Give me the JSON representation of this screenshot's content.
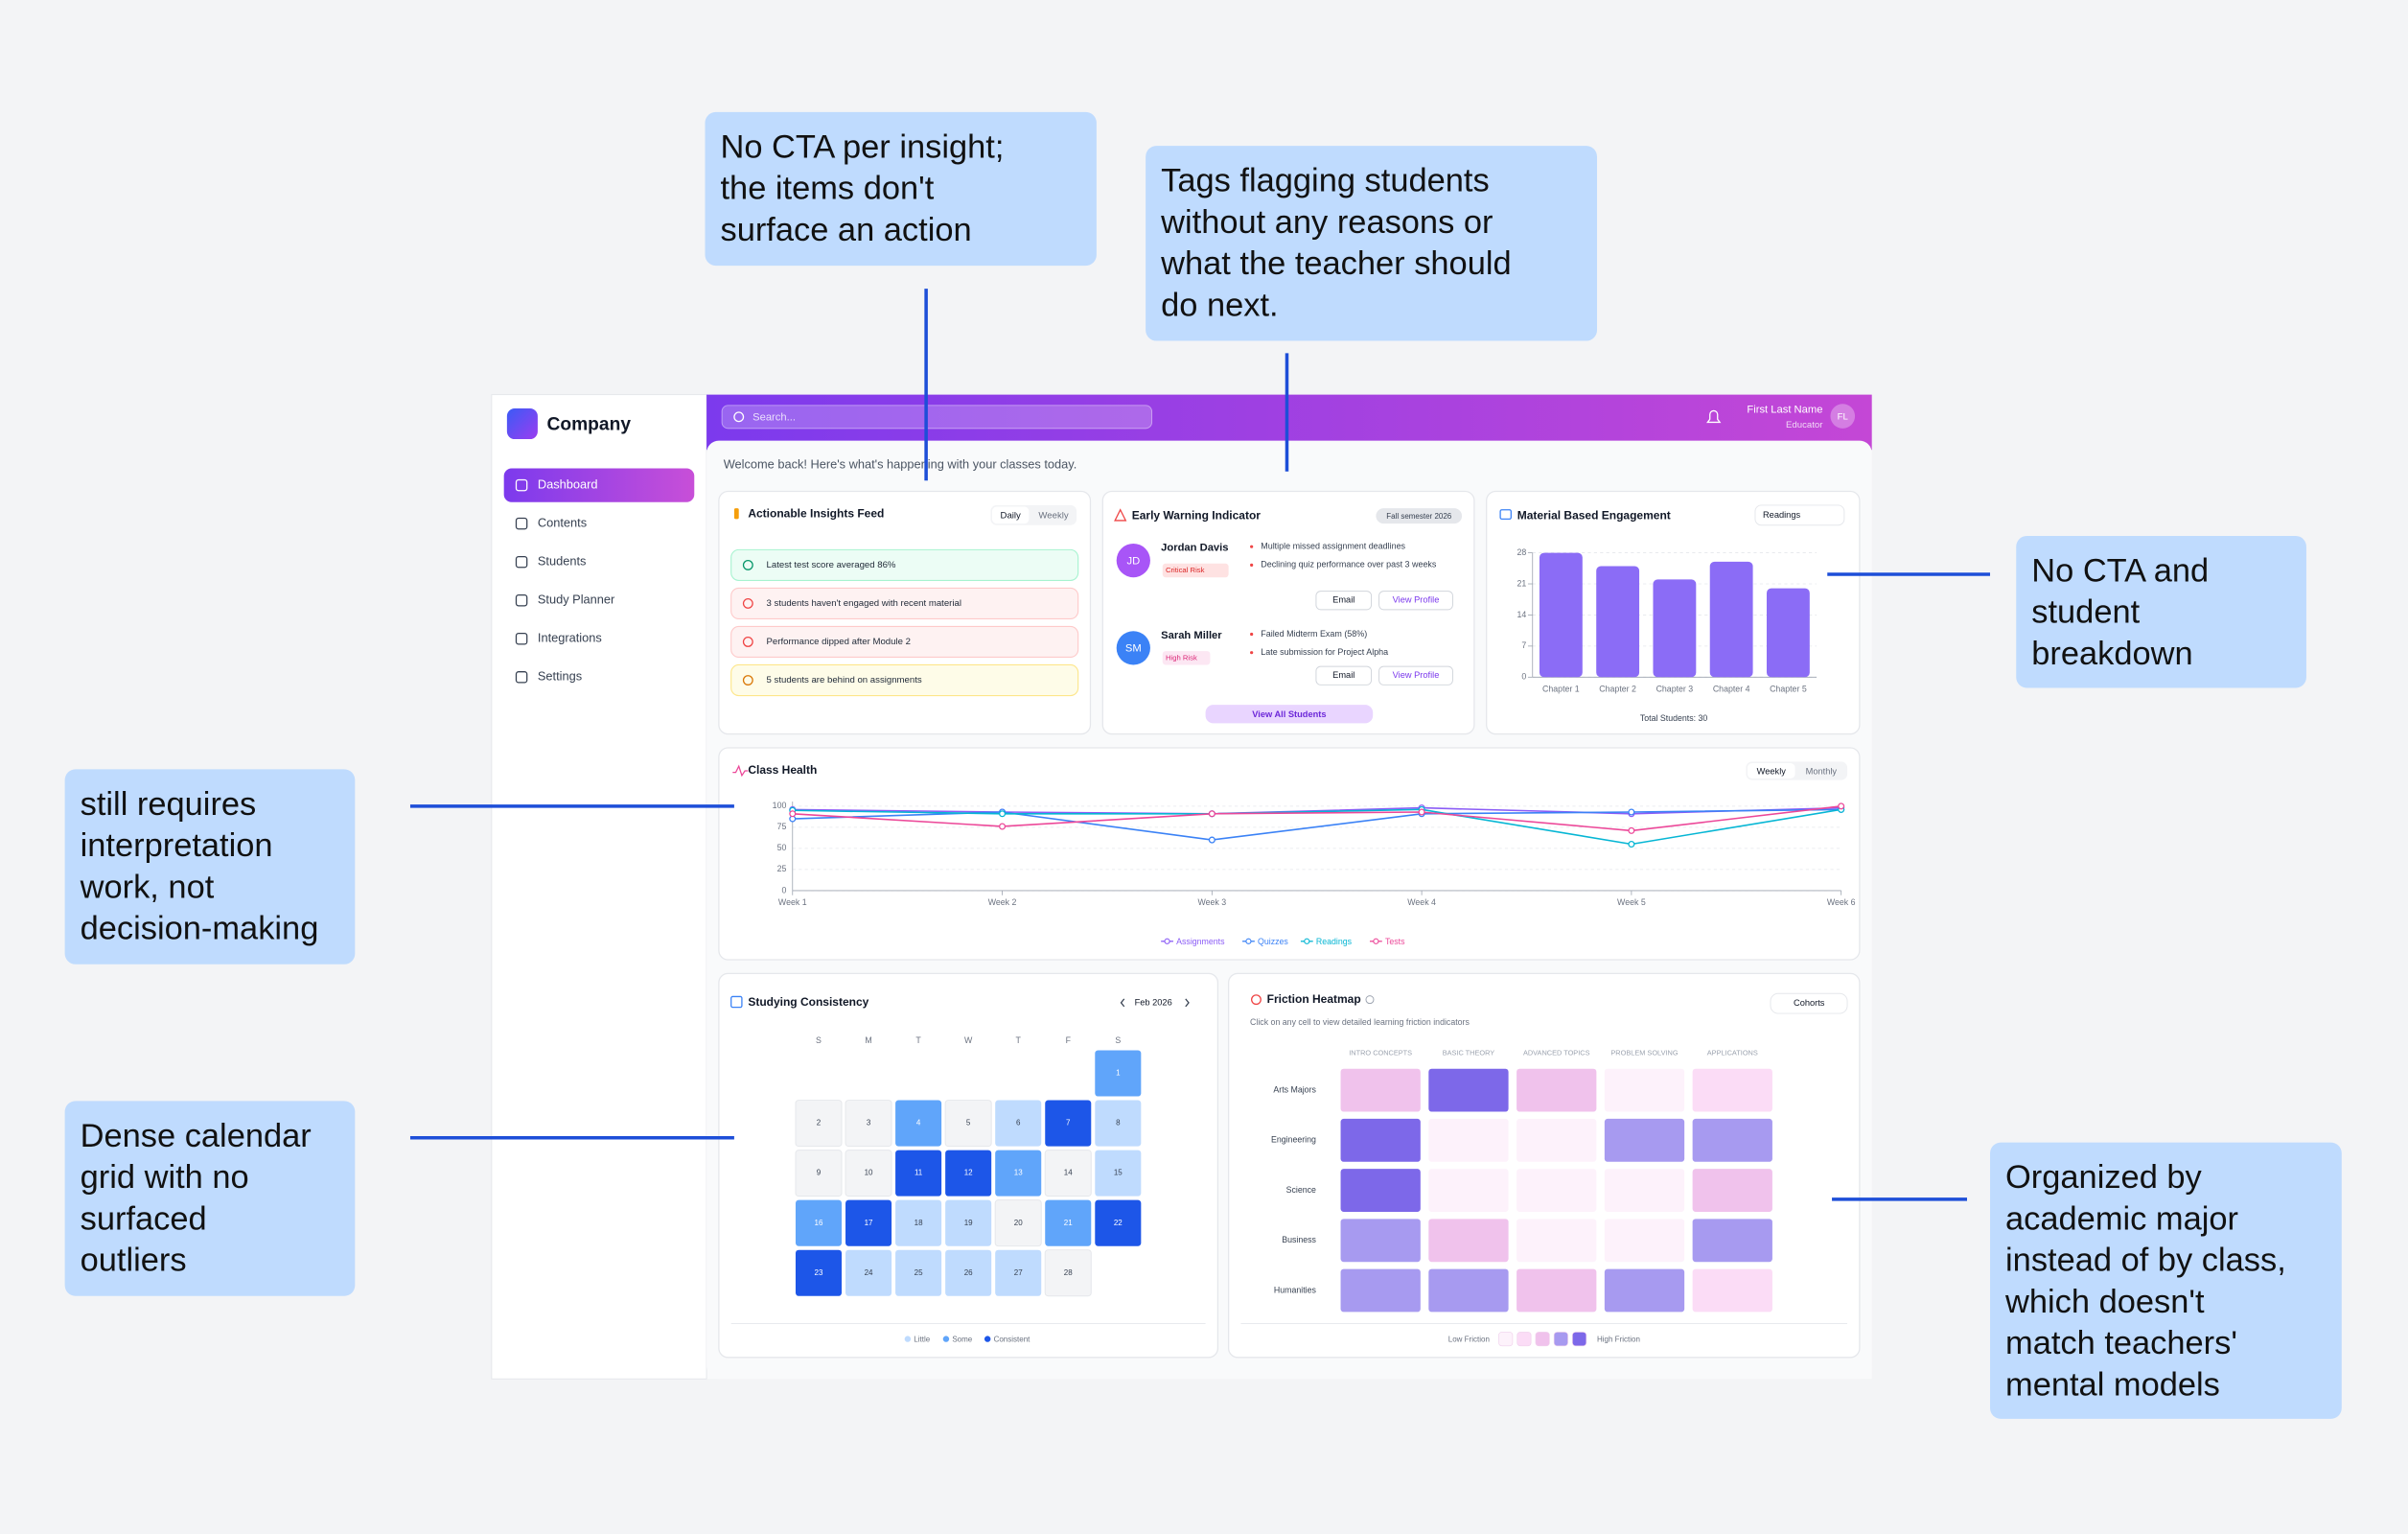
{
  "annotations": [
    {
      "lines": [
        "No CTA per insight;",
        "the items don't",
        "surface an action"
      ]
    },
    {
      "lines": [
        "Tags flagging students",
        "without any reasons or",
        "what the teacher should",
        "do next."
      ]
    },
    {
      "lines": [
        "No CTA and",
        "student",
        "breakdown"
      ]
    },
    {
      "lines": [
        "still requires",
        "interpretation",
        "work, not",
        "decision-making"
      ]
    },
    {
      "lines": [
        "Dense calendar",
        "grid with no",
        "surfaced",
        "outliers"
      ]
    },
    {
      "lines": [
        "Organized by",
        "academic major",
        "instead of by class,",
        "which doesn't",
        "match teachers'",
        "mental models"
      ]
    }
  ],
  "sidebar": {
    "brand": "Company",
    "nav": [
      "Dashboard",
      "Contents",
      "Students",
      "Study Planner",
      "Integrations",
      "Settings"
    ]
  },
  "header": {
    "search": "Search...",
    "user_name": "First Last Name",
    "user_role": "Educator",
    "initials": "FL"
  },
  "welcome": "Welcome back! Here's what's happening with your classes today.",
  "insights": {
    "title": "Actionable Insights Feed",
    "tabs": [
      "Daily",
      "Weekly"
    ],
    "items": [
      "Latest test score averaged 86%",
      "3 students haven't engaged with recent material",
      "Performance dipped after Module 2",
      "5 students are behind on assignments"
    ]
  },
  "warning": {
    "title": "Early Warning Indicator",
    "tag": "Fall semester 2026",
    "students": [
      {
        "initials": "JD",
        "name": "Jordan Davis",
        "risk": "Critical Risk",
        "reasons": [
          "Multiple missed assignment deadlines",
          "Declining quiz performance over past 3 weeks"
        ],
        "actions": [
          "Email",
          "View Profile"
        ]
      },
      {
        "initials": "SM",
        "name": "Sarah Miller",
        "risk": "High Risk",
        "reasons": [
          "Failed Midterm Exam (58%)",
          "Late submission for Project Alpha"
        ],
        "actions": [
          "Email",
          "View Profile"
        ]
      }
    ],
    "button": "View All Students"
  },
  "engagement": {
    "title": "Material Based Engagement",
    "dropdown": "Readings",
    "footer": "Total Students: 30",
    "chart": {
      "type": "bar",
      "categories": [
        "Chapter 1",
        "Chapter 2",
        "Chapter 3",
        "Chapter 4",
        "Chapter 5"
      ],
      "values": [
        28,
        25,
        22,
        26,
        20
      ],
      "color": "#8b6cf6",
      "ylim": [
        0,
        28
      ],
      "yticks": [
        0,
        7,
        14,
        21,
        28
      ],
      "grid": true
    }
  },
  "class_health": {
    "title": "Class Health",
    "tabs": [
      "Weekly",
      "Monthly"
    ],
    "chart": {
      "type": "line",
      "categories": [
        "Week 1",
        "Week 2",
        "Week 3",
        "Week 4",
        "Week 5",
        "Week 6"
      ],
      "ylim": [
        0,
        100
      ],
      "yticks": [
        0,
        25,
        50,
        75,
        100
      ],
      "grid": true,
      "series": [
        {
          "name": "Assignments",
          "color": "#8b5cf6",
          "values": [
            96,
            93,
            91,
            98,
            91,
            98
          ]
        },
        {
          "name": "Quizzes",
          "color": "#3b82f6",
          "values": [
            85,
            93,
            60,
            91,
            93,
            96
          ]
        },
        {
          "name": "Readings",
          "color": "#06b6d4",
          "values": [
            95,
            91,
            91,
            96,
            55,
            96
          ]
        },
        {
          "name": "Tests",
          "color": "#ec4899",
          "values": [
            91,
            76,
            91,
            93,
            71,
            100
          ]
        }
      ]
    }
  },
  "consistency": {
    "title": "Studying Consistency",
    "month": "Feb 2026",
    "weekdays": [
      "S",
      "M",
      "T",
      "W",
      "T",
      "F",
      "S"
    ],
    "weeks": [
      [
        null,
        null,
        null,
        null,
        null,
        null,
        1
      ],
      [
        2,
        3,
        4,
        5,
        6,
        7,
        8
      ],
      [
        9,
        10,
        11,
        12,
        13,
        14,
        15
      ],
      [
        16,
        17,
        18,
        19,
        20,
        21,
        22
      ],
      [
        23,
        24,
        25,
        26,
        27,
        28,
        null
      ]
    ],
    "levels": [
      [
        null,
        null,
        null,
        null,
        null,
        null,
        2
      ],
      [
        0,
        0,
        2,
        0,
        1,
        3,
        1
      ],
      [
        0,
        0,
        3,
        3,
        2,
        0,
        1
      ],
      [
        2,
        3,
        1,
        1,
        0,
        2,
        3
      ],
      [
        3,
        1,
        1,
        1,
        1,
        0,
        null
      ]
    ],
    "level_colors": [
      "#f3f4f6",
      "#bfdbfe",
      "#60a5fa",
      "#1d56e8"
    ],
    "legend": [
      "Little",
      "Some",
      "Consistent"
    ]
  },
  "friction": {
    "title": "Friction Heatmap",
    "subtitle": "Click on any cell to view detailed learning friction indicators",
    "filter": "Cohorts",
    "columns": [
      "INTRO CONCEPTS",
      "BASIC THEORY",
      "ADVANCED TOPICS",
      "PROBLEM SOLVING",
      "APPLICATIONS"
    ],
    "rows": [
      "Arts Majors",
      "Engineering",
      "Science",
      "Business",
      "Humanities"
    ],
    "values": [
      [
        3,
        5,
        3,
        1,
        2
      ],
      [
        5,
        1,
        1,
        4,
        4
      ],
      [
        5,
        1,
        1,
        1,
        3
      ],
      [
        4,
        3,
        1,
        1,
        4
      ],
      [
        4,
        4,
        3,
        4,
        2
      ]
    ],
    "scale_colors": [
      "#fdf2fb",
      "#fbdcf6",
      "#f0c2ec",
      "#a79af0",
      "#7d68e9"
    ],
    "legend_low": "Low Friction",
    "legend_high": "High Friction"
  }
}
